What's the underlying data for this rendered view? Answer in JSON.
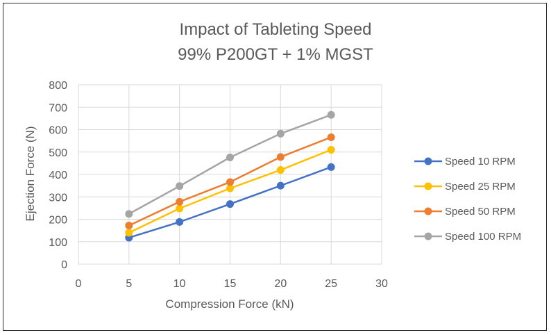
{
  "chart_data": {
    "type": "line",
    "title": "Impact of Tableting Speed",
    "subtitle": "99% P200GT + 1% MGST",
    "xlabel": "Compression Force (kN)",
    "ylabel": "Ejection Force (N)",
    "xlim": [
      0,
      30
    ],
    "ylim": [
      0,
      800
    ],
    "xticks": [
      0,
      5,
      10,
      15,
      20,
      25,
      30
    ],
    "yticks": [
      0,
      100,
      200,
      300,
      400,
      500,
      600,
      700,
      800
    ],
    "grid": true,
    "legend_position": "right",
    "x": [
      5,
      10,
      15,
      20,
      25
    ],
    "series": [
      {
        "name": "Speed 10 RPM",
        "color": "#4472C4",
        "values": [
          118,
          188,
          268,
          350,
          433
        ]
      },
      {
        "name": "Speed 25 RPM",
        "color": "#FFC000",
        "values": [
          140,
          248,
          338,
          420,
          510
        ]
      },
      {
        "name": "Speed 50 RPM",
        "color": "#ED7D31",
        "values": [
          172,
          278,
          366,
          478,
          566
        ]
      },
      {
        "name": "Speed 100 RPM",
        "color": "#A5A5A5",
        "values": [
          224,
          348,
          476,
          582,
          666
        ]
      }
    ]
  }
}
